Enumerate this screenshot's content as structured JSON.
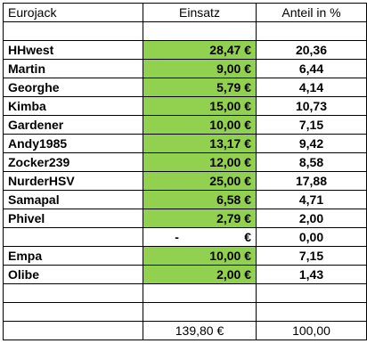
{
  "headers": [
    "Eurojack",
    "Einsatz",
    "Anteil in %"
  ],
  "rows": [
    {
      "name": "",
      "amount": "",
      "share": "",
      "green": false
    },
    {
      "name": "HHwest",
      "amount": "28,47 €",
      "share": "20,36",
      "green": true
    },
    {
      "name": "Martin",
      "amount": "9,00 €",
      "share": "6,44",
      "green": true
    },
    {
      "name": "Georghe",
      "amount": "5,79 €",
      "share": "4,14",
      "green": true
    },
    {
      "name": "Kimba",
      "amount": "15,00 €",
      "share": "10,73",
      "green": true
    },
    {
      "name": "Gardener",
      "amount": "10,00 €",
      "share": "7,15",
      "green": true
    },
    {
      "name": "Andy1985",
      "amount": "13,17 €",
      "share": "9,42",
      "green": true
    },
    {
      "name": "Zocker239",
      "amount": "12,00 €",
      "share": "8,58",
      "green": true
    },
    {
      "name": "NurderHSV",
      "amount": "25,00 €",
      "share": "17,88",
      "green": true
    },
    {
      "name": "Samapal",
      "amount": "6,58 €",
      "share": "4,71",
      "green": true
    },
    {
      "name": "Phivel",
      "amount": "2,79 €",
      "share": "2,00",
      "green": true
    },
    {
      "name": "",
      "amount_dash": "-",
      "amount_sym": "€",
      "share": "0,00",
      "green": false
    },
    {
      "name": "Empa",
      "amount": "10,00 €",
      "share": "7,15",
      "green": true
    },
    {
      "name": "Olibe",
      "amount": "2,00 €",
      "share": "1,43",
      "green": true
    },
    {
      "name": "",
      "amount": "",
      "share": "",
      "green": false
    },
    {
      "name": "",
      "amount": "",
      "share": "",
      "green": false
    }
  ],
  "total": {
    "name": "",
    "amount": "139,80 €",
    "share": "100,00"
  },
  "colors": {
    "highlight": "#92d050",
    "border": "#000000"
  }
}
